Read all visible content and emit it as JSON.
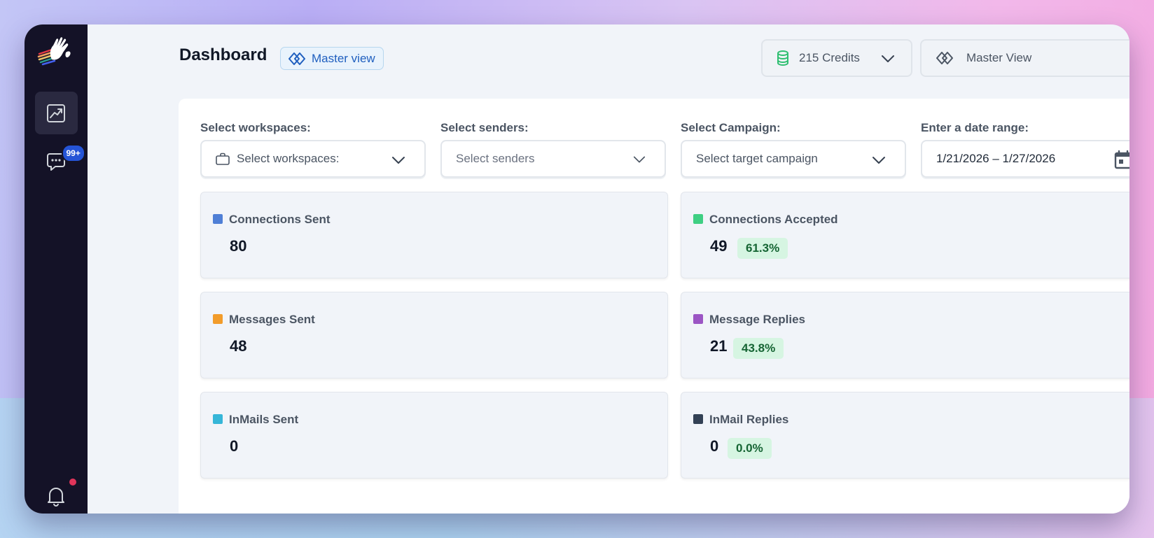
{
  "header": {
    "title": "Dashboard",
    "view_badge": "Master view",
    "credits_label": "215 Credits",
    "view_selector": "Master View"
  },
  "sidebar": {
    "chat_badge": "99+"
  },
  "filters": [
    {
      "label": "Select workspaces:",
      "value": "Select workspaces:"
    },
    {
      "label": "Select senders:",
      "placeholder": "Select senders"
    },
    {
      "label": "Select Campaign:",
      "value": "Select target campaign"
    },
    {
      "label": "Enter a date range:",
      "value": "1/21/2026 – 1/27/2026"
    }
  ],
  "stats": [
    {
      "label": "Connections Sent",
      "value": "80",
      "color": "#4f7fd6"
    },
    {
      "label": "Connections Accepted",
      "value": "49",
      "percent": "61.3%",
      "color": "#3fcf83"
    },
    {
      "label": "Messages Sent",
      "value": "48",
      "color": "#f29c2b"
    },
    {
      "label": "Message Replies",
      "value": "21",
      "percent": "43.8%",
      "color": "#9b55c4"
    },
    {
      "label": "InMails Sent",
      "value": "0",
      "color": "#36b6d8"
    },
    {
      "label": "InMail Replies",
      "value": "0",
      "percent": "0.0%",
      "color": "#334155"
    }
  ],
  "icons": {
    "credits": "database-icon",
    "view": "diamond-view-icon",
    "nav_dashboard": "chart-trend-icon",
    "nav_chat": "chat-bubble-icon",
    "nav_notifications": "bell-icon",
    "date": "calendar-icon"
  }
}
